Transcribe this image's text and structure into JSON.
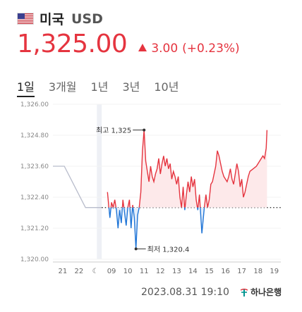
{
  "header": {
    "flag_icon": "us-flag-icon",
    "country": "미국",
    "currency": "USD"
  },
  "quote": {
    "price": "1,325.00",
    "change": "3.00",
    "change_pct": "(+0.23%)",
    "direction_icon": "triangle-up-icon",
    "up_color": "#e5343f",
    "down_color": "#1e74d6"
  },
  "tabs": [
    {
      "label": "1일",
      "active": true
    },
    {
      "label": "3개월",
      "active": false
    },
    {
      "label": "1년",
      "active": false
    },
    {
      "label": "3년",
      "active": false
    },
    {
      "label": "10년",
      "active": false
    }
  ],
  "chart_data": {
    "type": "line",
    "ylim": [
      1320.0,
      1326.0
    ],
    "y_ticks": [
      "1,326.00",
      "1,324.80",
      "1,323.60",
      "1,322.40",
      "1,321.20",
      "1,320.00"
    ],
    "y_tick_values": [
      1326.0,
      1324.8,
      1323.6,
      1322.4,
      1321.2,
      1320.0
    ],
    "x_ticks": [
      "21",
      "22",
      "☾",
      "09",
      "10",
      "11",
      "12",
      "13",
      "14",
      "15",
      "16",
      "17",
      "18",
      "19"
    ],
    "previous_close": 1322.0,
    "previous_session": [
      [
        0,
        1323.6
      ],
      [
        0.7,
        1323.6
      ],
      [
        2.0,
        1322.0
      ],
      [
        3.0,
        1322.0
      ]
    ],
    "series": [
      [
        3.35,
        1322.6
      ],
      [
        3.5,
        1321.6
      ],
      [
        3.6,
        1322.2
      ],
      [
        3.7,
        1322.0
      ],
      [
        3.8,
        1322.3
      ],
      [
        3.9,
        1321.9
      ],
      [
        4.0,
        1321.2
      ],
      [
        4.1,
        1321.9
      ],
      [
        4.2,
        1321.4
      ],
      [
        4.3,
        1322.3
      ],
      [
        4.4,
        1321.8
      ],
      [
        4.5,
        1321.3
      ],
      [
        4.6,
        1322.0
      ],
      [
        4.7,
        1322.3
      ],
      [
        4.8,
        1321.2
      ],
      [
        4.9,
        1322.1
      ],
      [
        5.0,
        1321.6
      ],
      [
        5.1,
        1320.4
      ],
      [
        5.2,
        1321.7
      ],
      [
        5.3,
        1322.0
      ],
      [
        5.4,
        1322.6
      ],
      [
        5.5,
        1324.2
      ],
      [
        5.6,
        1325.0
      ],
      [
        5.7,
        1323.8
      ],
      [
        5.8,
        1323.4
      ],
      [
        5.9,
        1323.0
      ],
      [
        6.0,
        1323.6
      ],
      [
        6.1,
        1323.2
      ],
      [
        6.2,
        1323.0
      ],
      [
        6.3,
        1323.3
      ],
      [
        6.4,
        1323.5
      ],
      [
        6.5,
        1323.9
      ],
      [
        6.6,
        1323.3
      ],
      [
        6.7,
        1323.7
      ],
      [
        6.8,
        1324.0
      ],
      [
        6.9,
        1323.6
      ],
      [
        7.0,
        1323.9
      ],
      [
        7.1,
        1323.5
      ],
      [
        7.2,
        1323.7
      ],
      [
        7.3,
        1323.1
      ],
      [
        7.4,
        1323.4
      ],
      [
        7.5,
        1323.2
      ],
      [
        7.6,
        1322.9
      ],
      [
        7.7,
        1323.2
      ],
      [
        7.8,
        1322.4
      ],
      [
        7.9,
        1322.0
      ],
      [
        8.0,
        1322.8
      ],
      [
        8.1,
        1321.9
      ],
      [
        8.2,
        1322.5
      ],
      [
        8.3,
        1323.0
      ],
      [
        8.4,
        1322.6
      ],
      [
        8.5,
        1323.2
      ],
      [
        8.6,
        1322.8
      ],
      [
        8.7,
        1323.1
      ],
      [
        8.8,
        1322.3
      ],
      [
        8.9,
        1321.9
      ],
      [
        9.0,
        1322.5
      ],
      [
        9.1,
        1321.5
      ],
      [
        9.15,
        1321.0
      ],
      [
        9.3,
        1322.0
      ],
      [
        9.4,
        1322.5
      ],
      [
        9.5,
        1322.0
      ],
      [
        9.6,
        1322.3
      ],
      [
        9.7,
        1322.9
      ],
      [
        9.8,
        1323.0
      ],
      [
        9.9,
        1323.3
      ],
      [
        10.0,
        1323.6
      ],
      [
        10.1,
        1324.2
      ],
      [
        10.2,
        1324.0
      ],
      [
        10.3,
        1323.7
      ],
      [
        10.4,
        1323.4
      ],
      [
        10.5,
        1323.2
      ],
      [
        10.6,
        1323.1
      ],
      [
        10.7,
        1323.0
      ],
      [
        10.8,
        1323.2
      ],
      [
        10.9,
        1323.5
      ],
      [
        11.0,
        1323.1
      ],
      [
        11.1,
        1322.9
      ],
      [
        11.2,
        1323.3
      ],
      [
        11.3,
        1323.7
      ],
      [
        11.4,
        1323.4
      ],
      [
        11.5,
        1322.8
      ],
      [
        11.6,
        1323.1
      ],
      [
        11.7,
        1322.4
      ],
      [
        11.8,
        1322.6
      ],
      [
        11.9,
        1322.9
      ],
      [
        12.0,
        1323.2
      ],
      [
        12.1,
        1323.4
      ],
      [
        12.3,
        1323.5
      ],
      [
        12.5,
        1323.6
      ],
      [
        12.7,
        1323.8
      ],
      [
        12.9,
        1324.0
      ],
      [
        13.0,
        1323.9
      ],
      [
        13.1,
        1324.3
      ],
      [
        13.15,
        1325.0
      ]
    ],
    "high": {
      "label": "최고",
      "value": "1,325"
    },
    "low": {
      "label": "최저",
      "value": "1,320.4"
    }
  },
  "footer": {
    "timestamp": "2023.08.31 19:10",
    "bank_icon": "hana-bank-logo-icon",
    "bank_name": "하나은행"
  }
}
